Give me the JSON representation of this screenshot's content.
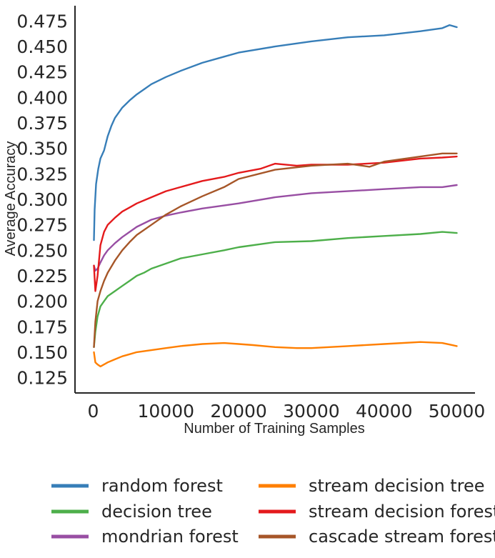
{
  "chart_data": {
    "type": "line",
    "title": "",
    "xlabel": "Number of Training Samples",
    "ylabel": "Average Accuracy",
    "xlim": [
      -2500,
      52500
    ],
    "ylim": [
      0.11,
      0.49
    ],
    "xticks": [
      0,
      10000,
      20000,
      30000,
      40000,
      50000
    ],
    "xtick_labels": [
      "0",
      "10000",
      "20000",
      "30000",
      "40000",
      "50000"
    ],
    "yticks": [
      0.125,
      0.15,
      0.175,
      0.2,
      0.225,
      0.25,
      0.275,
      0.3,
      0.325,
      0.35,
      0.375,
      0.4,
      0.425,
      0.45,
      0.475
    ],
    "ytick_labels": [
      "0.125",
      "0.150",
      "0.175",
      "0.200",
      "0.225",
      "0.250",
      "0.275",
      "0.300",
      "0.325",
      "0.350",
      "0.375",
      "0.400",
      "0.425",
      "0.450",
      "0.475"
    ],
    "grid": false,
    "legend_position": "bottom, two columns",
    "series": [
      {
        "name": "random forest",
        "color": "#377eb8",
        "x": [
          100,
          200,
          400,
          700,
          1000,
          1500,
          2000,
          2500,
          3000,
          4000,
          5000,
          6000,
          7000,
          8000,
          10000,
          12000,
          15000,
          18000,
          20000,
          25000,
          30000,
          35000,
          40000,
          45000,
          48000,
          49000,
          50000
        ],
        "y": [
          0.26,
          0.29,
          0.315,
          0.33,
          0.34,
          0.348,
          0.362,
          0.372,
          0.38,
          0.39,
          0.397,
          0.403,
          0.408,
          0.413,
          0.42,
          0.426,
          0.434,
          0.44,
          0.444,
          0.45,
          0.455,
          0.459,
          0.461,
          0.465,
          0.468,
          0.471,
          0.469
        ]
      },
      {
        "name": "decision tree",
        "color": "#4daf4a",
        "x": [
          100,
          300,
          600,
          1000,
          1500,
          2000,
          3000,
          4000,
          5000,
          6000,
          7000,
          8000,
          10000,
          12000,
          15000,
          18000,
          20000,
          25000,
          30000,
          35000,
          40000,
          45000,
          48000,
          50000
        ],
        "y": [
          0.155,
          0.17,
          0.185,
          0.195,
          0.2,
          0.205,
          0.21,
          0.215,
          0.22,
          0.225,
          0.228,
          0.232,
          0.237,
          0.242,
          0.246,
          0.25,
          0.253,
          0.258,
          0.259,
          0.262,
          0.264,
          0.266,
          0.268,
          0.267
        ]
      },
      {
        "name": "mondrian forest",
        "color": "#984ea3",
        "x": [
          100,
          300,
          600,
          1000,
          1500,
          2000,
          3000,
          4000,
          5000,
          6000,
          8000,
          10000,
          12000,
          15000,
          18000,
          20000,
          25000,
          30000,
          35000,
          40000,
          45000,
          48000,
          50000
        ],
        "y": [
          0.235,
          0.23,
          0.232,
          0.238,
          0.245,
          0.25,
          0.257,
          0.263,
          0.268,
          0.273,
          0.28,
          0.284,
          0.287,
          0.291,
          0.294,
          0.296,
          0.302,
          0.306,
          0.308,
          0.31,
          0.312,
          0.312,
          0.314
        ]
      },
      {
        "name": "stream decision tree",
        "color": "#ff7f00",
        "x": [
          100,
          300,
          600,
          1000,
          1500,
          2000,
          3000,
          4000,
          5000,
          6000,
          8000,
          10000,
          12000,
          15000,
          18000,
          20000,
          22000,
          25000,
          28000,
          30000,
          35000,
          40000,
          45000,
          48000,
          50000
        ],
        "y": [
          0.15,
          0.14,
          0.138,
          0.136,
          0.138,
          0.14,
          0.143,
          0.146,
          0.148,
          0.15,
          0.152,
          0.154,
          0.156,
          0.158,
          0.159,
          0.158,
          0.157,
          0.155,
          0.154,
          0.154,
          0.156,
          0.158,
          0.16,
          0.159,
          0.156
        ]
      },
      {
        "name": "stream decision forest",
        "color": "#e41a1c",
        "x": [
          100,
          300,
          600,
          1000,
          1500,
          2000,
          3000,
          4000,
          5000,
          6000,
          8000,
          10000,
          12000,
          15000,
          18000,
          20000,
          23000,
          25000,
          28000,
          30000,
          35000,
          40000,
          45000,
          48000,
          50000
        ],
        "y": [
          0.235,
          0.21,
          0.225,
          0.255,
          0.268,
          0.275,
          0.282,
          0.288,
          0.292,
          0.296,
          0.302,
          0.308,
          0.312,
          0.318,
          0.322,
          0.326,
          0.33,
          0.335,
          0.333,
          0.334,
          0.334,
          0.336,
          0.34,
          0.341,
          0.342
        ]
      },
      {
        "name": "cascade stream forest",
        "color": "#a65628",
        "x": [
          100,
          300,
          600,
          1000,
          1500,
          2000,
          3000,
          4000,
          5000,
          6000,
          8000,
          10000,
          12000,
          15000,
          18000,
          20000,
          25000,
          30000,
          35000,
          38000,
          40000,
          45000,
          48000,
          50000
        ],
        "y": [
          0.155,
          0.18,
          0.2,
          0.21,
          0.22,
          0.228,
          0.24,
          0.25,
          0.258,
          0.265,
          0.275,
          0.285,
          0.293,
          0.303,
          0.312,
          0.32,
          0.329,
          0.333,
          0.335,
          0.332,
          0.337,
          0.342,
          0.345,
          0.345
        ]
      }
    ]
  }
}
